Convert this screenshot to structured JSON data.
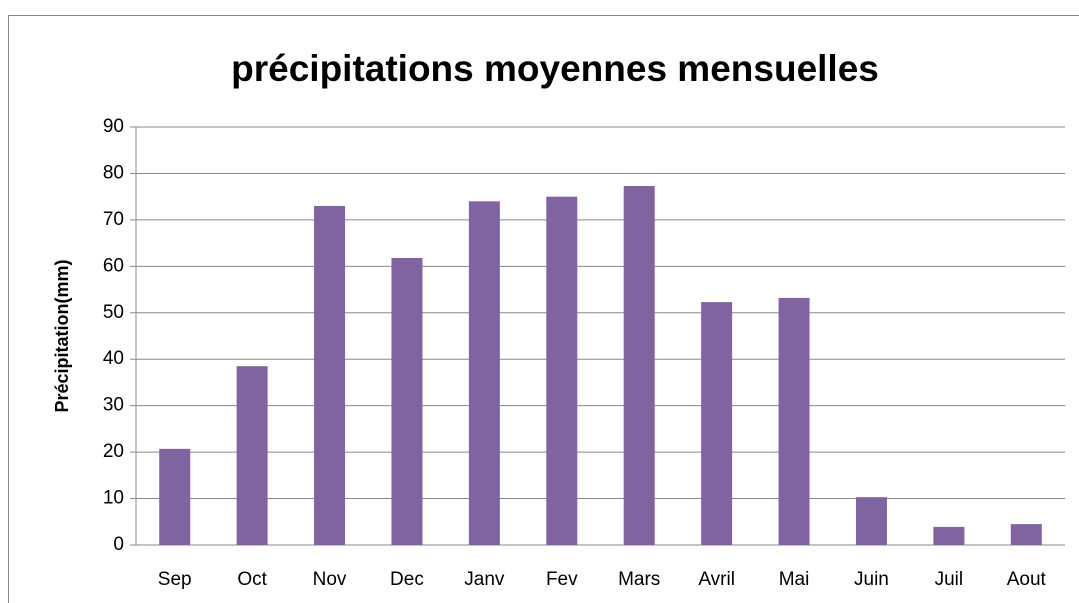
{
  "chart_data": {
    "type": "bar",
    "title": "précipitations moyennes mensuelles",
    "y_label": "Précipitation(mm)",
    "categories": [
      "Sep",
      "Oct",
      "Nov",
      "Dec",
      "Janv",
      "Fev",
      "Mars",
      "Avril",
      "Mai",
      "Juin",
      "Juil",
      "Aout"
    ],
    "values": [
      20.7,
      38.5,
      73,
      61.8,
      74,
      75,
      77.3,
      52.3,
      53.2,
      10.3,
      3.9,
      4.5
    ],
    "color": "#8064a2",
    "ylim": [
      0,
      90
    ],
    "yticks": [
      0,
      10,
      20,
      30,
      40,
      50,
      60,
      70,
      80,
      90
    ],
    "grid": true
  }
}
